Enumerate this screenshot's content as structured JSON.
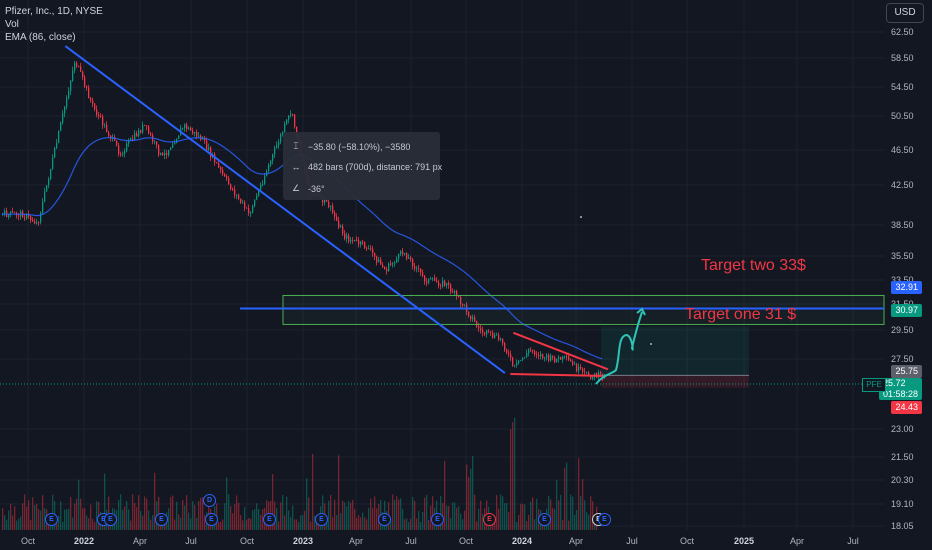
{
  "header": {
    "title": "Pfizer, Inc., 1D, NYSE",
    "volume_label": "Vol",
    "ema_label": "EMA (86, close)",
    "currency_button": "USD"
  },
  "measure_tooltip": {
    "price_change": "−35.80 (−58.10%), −3580",
    "bars": "482 bars (700d), distance: 791 px",
    "angle": "-36°"
  },
  "annotations": {
    "target_two": "Target two 33$",
    "target_one": "Target one 31 $"
  },
  "price_badges": {
    "level_line": "32.91",
    "target_box": "30.97",
    "entry": "25.75",
    "last_price": "25.72",
    "countdown": "01:58:28",
    "stop": "24.43",
    "symbol": "PFE"
  },
  "x_axis_labels": [
    "Oct",
    "2022",
    "Apr",
    "Jul",
    "Oct",
    "2023",
    "Apr",
    "Jul",
    "Oct",
    "2024",
    "Apr",
    "Jul",
    "Oct",
    "2025",
    "Apr",
    "Jul"
  ],
  "y_axis_labels": [
    "62.50",
    "58.50",
    "54.50",
    "50.50",
    "46.50",
    "42.50",
    "38.50",
    "35.50",
    "33.50",
    "31.50",
    "29.50",
    "27.50",
    "23.00",
    "21.50",
    "20.30",
    "19.10",
    "18.05"
  ],
  "events": [
    {
      "kind": "E",
      "label": "E"
    },
    {
      "kind": "E",
      "label": "E"
    },
    {
      "kind": "E",
      "label": "E"
    },
    {
      "kind": "E",
      "label": "E"
    },
    {
      "kind": "E",
      "label": "E"
    },
    {
      "kind": "E",
      "label": "E"
    },
    {
      "kind": "E",
      "label": "E"
    },
    {
      "kind": "E",
      "label": "E"
    },
    {
      "kind": "E",
      "label": "E"
    },
    {
      "kind": "E",
      "label": "E"
    },
    {
      "kind": "E",
      "label": "E"
    },
    {
      "kind": "E",
      "label": "E"
    },
    {
      "kind": "E",
      "label": "E"
    },
    {
      "kind": "D",
      "label": "D"
    }
  ],
  "chart_data": {
    "type": "candlestick",
    "symbol": "PFE",
    "exchange": "NYSE",
    "interval": "1D",
    "x_range": [
      "2021-10",
      "2025-07"
    ],
    "price_range": [
      18.05,
      62.5
    ],
    "close_approx": [
      {
        "date": "2021-09-20",
        "close": 43.0
      },
      {
        "date": "2021-10-15",
        "close": 42.0
      },
      {
        "date": "2021-11-15",
        "close": 50.5
      },
      {
        "date": "2021-12-16",
        "close": 59.5
      },
      {
        "date": "2022-01-15",
        "close": 54.5
      },
      {
        "date": "2022-03-01",
        "close": 49.5
      },
      {
        "date": "2022-04-10",
        "close": 52.5
      },
      {
        "date": "2022-05-10",
        "close": 49.0
      },
      {
        "date": "2022-06-15",
        "close": 52.5
      },
      {
        "date": "2022-07-15",
        "close": 51.0
      },
      {
        "date": "2022-08-20",
        "close": 47.0
      },
      {
        "date": "2022-10-01",
        "close": 43.0
      },
      {
        "date": "2022-11-20",
        "close": 51.0
      },
      {
        "date": "2022-12-10",
        "close": 54.0
      },
      {
        "date": "2023-01-10",
        "close": 45.5
      },
      {
        "date": "2023-02-10",
        "close": 44.0
      },
      {
        "date": "2023-03-10",
        "close": 40.5
      },
      {
        "date": "2023-04-15",
        "close": 39.5
      },
      {
        "date": "2023-05-15",
        "close": 37.0
      },
      {
        "date": "2023-06-15",
        "close": 39.0
      },
      {
        "date": "2023-07-20",
        "close": 36.0
      },
      {
        "date": "2023-08-25",
        "close": 35.5
      },
      {
        "date": "2023-09-25",
        "close": 33.0
      },
      {
        "date": "2023-10-20",
        "close": 30.5
      },
      {
        "date": "2023-11-25",
        "close": 29.5
      },
      {
        "date": "2023-12-15",
        "close": 26.5
      },
      {
        "date": "2024-01-10",
        "close": 28.5
      },
      {
        "date": "2024-02-10",
        "close": 27.5
      },
      {
        "date": "2024-03-10",
        "close": 27.5
      },
      {
        "date": "2024-04-10",
        "close": 25.8
      },
      {
        "date": "2024-04-25",
        "close": 25.72
      }
    ],
    "last_price": 25.72,
    "drawings": {
      "downtrend_line": {
        "start": {
          "date": "2021-12-01",
          "price": 61.0
        },
        "end": {
          "date": "2023-12-01",
          "price": 26.0
        }
      },
      "resistance_level": {
        "price": 32.91
      },
      "target_zone": {
        "low": 31.2,
        "high": 34.3
      },
      "descending_resistance": {
        "start": {
          "date": "2023-12-15",
          "price": 30.3
        },
        "end": {
          "date": "2024-05-20",
          "price": 26.4
        }
      },
      "support": {
        "start": {
          "date": "2023-12-10",
          "price": 25.9
        },
        "end": {
          "date": "2024-05-10",
          "price": 25.7
        }
      },
      "long_position": {
        "entry": 25.75,
        "target": 30.97,
        "stop": 24.43
      }
    }
  }
}
